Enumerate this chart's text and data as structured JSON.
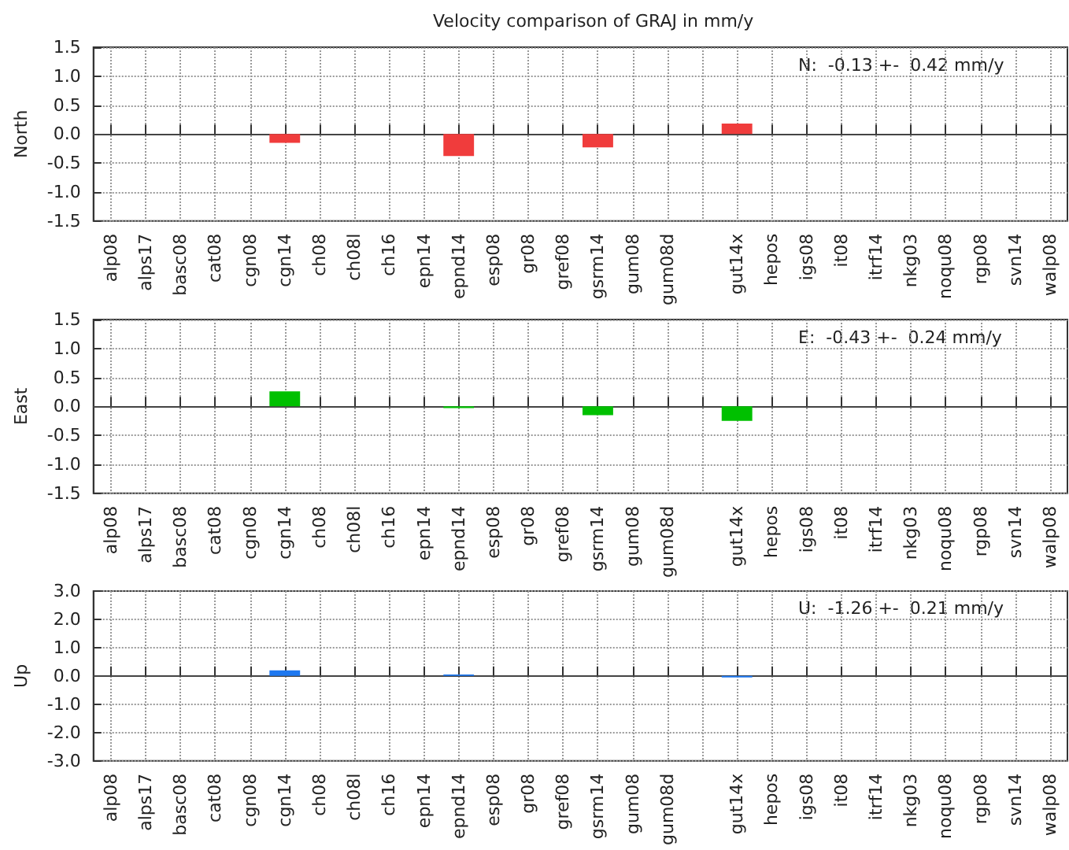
{
  "chart_data": [
    {
      "type": "bar",
      "title": "Velocity comparison of GRAJ in mm/y",
      "ylabel": "North",
      "categories": [
        "alp08",
        "alps17",
        "basc08",
        "cat08",
        "cgn08",
        "cgn14",
        "ch08",
        "ch08l",
        "ch16",
        "epn14",
        "epnd14",
        "esp08",
        "gr08",
        "gref08",
        "gsrm14",
        "gum08",
        "gum08d",
        null,
        "gut14x",
        "hepos",
        "igs08",
        "it08",
        "itrf14",
        "nkg03",
        "noqu08",
        "rgp08",
        "svn14",
        "walp08"
      ],
      "values": [
        null,
        null,
        null,
        null,
        null,
        -0.15,
        null,
        null,
        null,
        null,
        -0.38,
        null,
        null,
        null,
        -0.23,
        null,
        null,
        null,
        0.18,
        null,
        null,
        null,
        null,
        null,
        null,
        null,
        null,
        null
      ],
      "color": "#f03c3c",
      "ylim": [
        -1.5,
        1.5
      ],
      "yticks": [
        {
          "value": -1.5,
          "label": "-1.5"
        },
        {
          "value": -1,
          "label": "-1.0"
        },
        {
          "value": -0.5,
          "label": "-0.5"
        },
        {
          "value": 0,
          "label": "0.0"
        },
        {
          "value": 0.5,
          "label": "0.5"
        },
        {
          "value": 1,
          "label": "1.0"
        },
        {
          "value": 1.5,
          "label": "1.5"
        }
      ],
      "grid": true,
      "annotations": [
        "N:  -0.13 +-  0.42 mm/y"
      ]
    },
    {
      "type": "bar",
      "ylabel": "East",
      "categories": [
        "alp08",
        "alps17",
        "basc08",
        "cat08",
        "cgn08",
        "cgn14",
        "ch08",
        "ch08l",
        "ch16",
        "epn14",
        "epnd14",
        "esp08",
        "gr08",
        "gref08",
        "gsrm14",
        "gum08",
        "gum08d",
        null,
        "gut14x",
        "hepos",
        "igs08",
        "it08",
        "itrf14",
        "nkg03",
        "noqu08",
        "rgp08",
        "svn14",
        "walp08"
      ],
      "values": [
        null,
        null,
        null,
        null,
        null,
        0.26,
        null,
        null,
        null,
        null,
        -0.03,
        null,
        null,
        null,
        -0.15,
        null,
        null,
        null,
        -0.25,
        null,
        null,
        null,
        null,
        null,
        null,
        null,
        null,
        null
      ],
      "color": "#00c000",
      "ylim": [
        -1.5,
        1.5
      ],
      "yticks": [
        {
          "value": -1.5,
          "label": "-1.5"
        },
        {
          "value": -1,
          "label": "-1.0"
        },
        {
          "value": -0.5,
          "label": "-0.5"
        },
        {
          "value": 0,
          "label": "0.0"
        },
        {
          "value": 0.5,
          "label": "0.5"
        },
        {
          "value": 1,
          "label": "1.0"
        },
        {
          "value": 1.5,
          "label": "1.5"
        }
      ],
      "grid": true,
      "annotations": [
        "E:  -0.43 +-  0.24 mm/y"
      ]
    },
    {
      "type": "bar",
      "ylabel": "Up",
      "categories": [
        "alp08",
        "alps17",
        "basc08",
        "cat08",
        "cgn08",
        "cgn14",
        "ch08",
        "ch08l",
        "ch16",
        "epn14",
        "epnd14",
        "esp08",
        "gr08",
        "gref08",
        "gsrm14",
        "gum08",
        "gum08d",
        null,
        "gut14x",
        "hepos",
        "igs08",
        "it08",
        "itrf14",
        "nkg03",
        "noqu08",
        "rgp08",
        "svn14",
        "walp08"
      ],
      "values": [
        null,
        null,
        null,
        null,
        null,
        0.2,
        null,
        null,
        null,
        null,
        0.05,
        null,
        null,
        null,
        null,
        null,
        null,
        null,
        -0.05,
        null,
        null,
        null,
        null,
        null,
        null,
        null,
        null,
        null
      ],
      "color": "#1e78f0",
      "ylim": [
        -3,
        3
      ],
      "yticks": [
        {
          "value": -3,
          "label": "-3.0"
        },
        {
          "value": -2,
          "label": "-2.0"
        },
        {
          "value": -1,
          "label": "-1.0"
        },
        {
          "value": 0,
          "label": "0.0"
        },
        {
          "value": 1,
          "label": "1.0"
        },
        {
          "value": 2,
          "label": "2.0"
        },
        {
          "value": 3,
          "label": "3.0"
        }
      ],
      "grid": true,
      "annotations": [
        "U:  -1.26 +-  0.21 mm/y"
      ]
    }
  ]
}
